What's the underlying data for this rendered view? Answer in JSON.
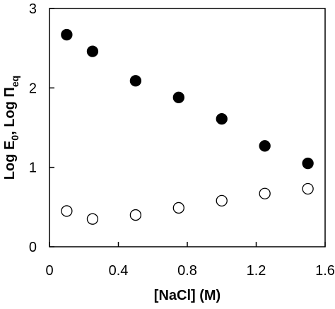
{
  "chart_data": {
    "type": "scatter",
    "title": "",
    "xlabel": "[NaCl] (M)",
    "ylabel": {
      "parts": [
        {
          "text": "Log E",
          "sub": false
        },
        {
          "text": "0",
          "sub": true
        },
        {
          "text": ", Log Π",
          "sub": false
        },
        {
          "text": "eq",
          "sub": true
        }
      ]
    },
    "xlim": [
      0,
      1.6
    ],
    "ylim": [
      0,
      3
    ],
    "x_ticks": [
      {
        "value": 0,
        "label": "0"
      },
      {
        "value": 0.4,
        "label": "0.4"
      },
      {
        "value": 0.8,
        "label": "0.8"
      },
      {
        "value": 1.2,
        "label": "1.2"
      },
      {
        "value": 1.6,
        "label": "1.6"
      }
    ],
    "y_ticks": [
      {
        "value": 0,
        "label": "0"
      },
      {
        "value": 1,
        "label": "1"
      },
      {
        "value": 2,
        "label": "2"
      },
      {
        "value": 3,
        "label": "3"
      }
    ],
    "grid": false,
    "legend": "none",
    "series": [
      {
        "marker": "filled-circle",
        "color": "#000000",
        "x": [
          0.1,
          0.25,
          0.5,
          0.75,
          1.0,
          1.25,
          1.5
        ],
        "y": [
          2.67,
          2.46,
          2.09,
          1.88,
          1.61,
          1.27,
          1.05
        ]
      },
      {
        "marker": "open-circle",
        "color": "#000000",
        "x": [
          0.1,
          0.25,
          0.5,
          0.75,
          1.0,
          1.25,
          1.5
        ],
        "y": [
          0.45,
          0.35,
          0.4,
          0.49,
          0.58,
          0.67,
          0.73
        ]
      }
    ]
  }
}
